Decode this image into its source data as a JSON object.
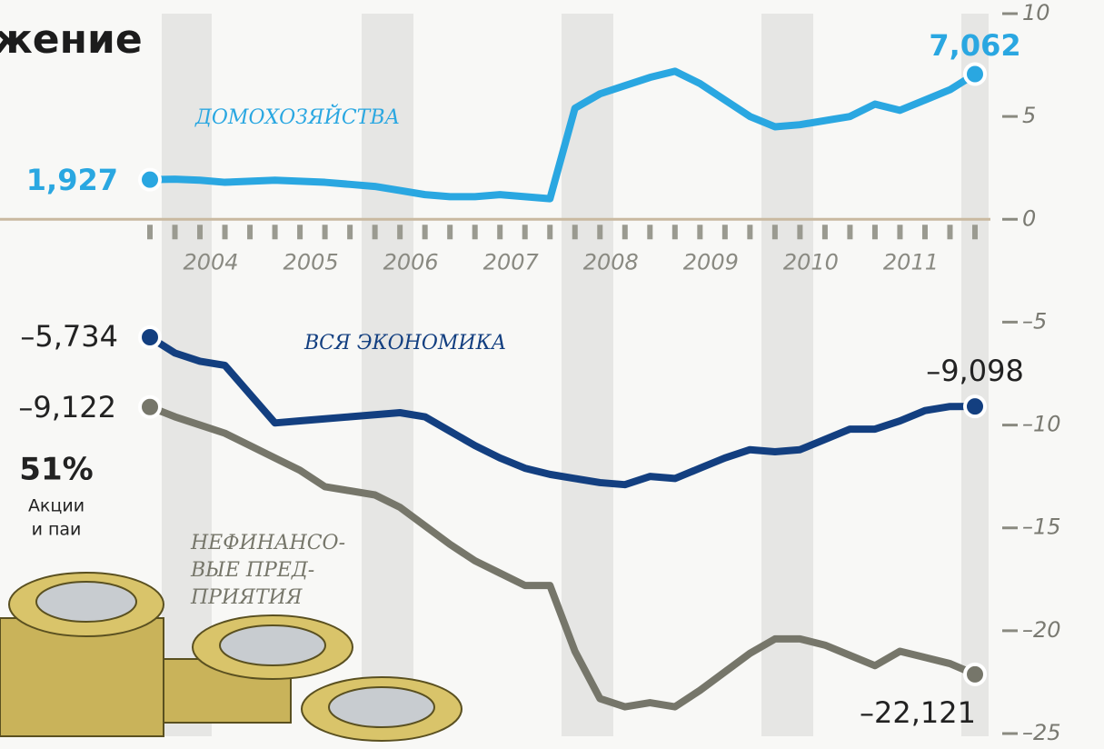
{
  "chart_data": {
    "type": "line",
    "title": "жение",
    "categories": [
      null,
      null,
      "2004",
      null,
      null,
      null,
      "2005",
      null,
      null,
      null,
      "2006",
      null,
      null,
      null,
      "2007",
      null,
      null,
      null,
      "2008",
      null,
      null,
      null,
      "2009",
      null,
      null,
      null,
      "2010",
      null,
      null,
      null,
      "2011",
      null,
      null,
      null
    ],
    "series": [
      {
        "name": "ДОМОХОЗЯЙСТВА",
        "color": "#2aa7e1",
        "values": [
          1.927,
          1.95,
          1.9,
          1.8,
          1.85,
          1.9,
          1.85,
          1.8,
          1.7,
          1.6,
          1.4,
          1.2,
          1.1,
          1.1,
          1.2,
          1.1,
          1.0,
          5.4,
          6.1,
          6.5,
          6.9,
          7.2,
          6.6,
          5.8,
          5.0,
          4.5,
          4.6,
          4.8,
          5.0,
          5.6,
          5.3,
          5.8,
          6.3,
          7.062
        ],
        "value_labels": [
          "1,927",
          null,
          null,
          null,
          null,
          null,
          null,
          null,
          null,
          null,
          null,
          null,
          null,
          null,
          null,
          null,
          null,
          null,
          null,
          null,
          null,
          null,
          null,
          null,
          null,
          null,
          null,
          null,
          null,
          null,
          null,
          null,
          null,
          "7,062"
        ]
      },
      {
        "name": "ВСЯ ЭКОНОМИКА",
        "color": "#133f80",
        "values": [
          -5.734,
          -6.5,
          -6.9,
          -7.1,
          -8.5,
          -9.9,
          -9.8,
          -9.7,
          -9.6,
          -9.5,
          -9.4,
          -9.6,
          -10.3,
          -11.0,
          -11.6,
          -12.1,
          -12.4,
          -12.6,
          -12.8,
          -12.9,
          -12.5,
          -12.6,
          -12.1,
          -11.6,
          -11.2,
          -11.3,
          -11.2,
          -10.7,
          -10.2,
          -10.2,
          -9.8,
          -9.3,
          -9.1,
          -9.098
        ],
        "value_labels": [
          "–5,734",
          null,
          null,
          null,
          null,
          null,
          null,
          null,
          null,
          null,
          null,
          null,
          null,
          null,
          null,
          null,
          null,
          null,
          null,
          null,
          null,
          null,
          null,
          null,
          null,
          null,
          null,
          null,
          null,
          null,
          null,
          null,
          null,
          "–9,098"
        ]
      },
      {
        "name": "НЕФИНАНСО-ВЫЕ ПРЕД-ПРИЯТИЯ",
        "color": "#76766a",
        "values": [
          -9.122,
          -9.6,
          -10.0,
          -10.4,
          -11.0,
          -11.6,
          -12.2,
          -13.0,
          -13.2,
          -13.4,
          -14.0,
          -14.9,
          -15.8,
          -16.6,
          -17.2,
          -17.8,
          -17.8,
          -21.0,
          -23.3,
          -23.7,
          -23.5,
          -23.7,
          -22.9,
          -22.0,
          -21.1,
          -20.4,
          -20.4,
          -20.7,
          -21.2,
          -21.7,
          -21.0,
          -21.3,
          -21.6,
          -22.121
        ],
        "value_labels": [
          "–9,122",
          null,
          null,
          null,
          null,
          null,
          null,
          null,
          null,
          null,
          null,
          null,
          null,
          null,
          null,
          null,
          null,
          null,
          null,
          null,
          null,
          null,
          null,
          null,
          null,
          null,
          null,
          null,
          null,
          null,
          null,
          null,
          null,
          "–22,121"
        ]
      }
    ],
    "ylim": [
      -25,
      10
    ],
    "yticks": [
      10,
      5,
      0,
      {
        "value": -5,
        "label": "–5"
      },
      {
        "value": -10,
        "label": "–10"
      },
      {
        "value": -15,
        "label": "–15"
      },
      {
        "value": -20,
        "label": "–20"
      },
      {
        "value": -25,
        "label": "–25"
      }
    ],
    "annotations": [
      "51%",
      "Акции",
      "и паи"
    ]
  }
}
